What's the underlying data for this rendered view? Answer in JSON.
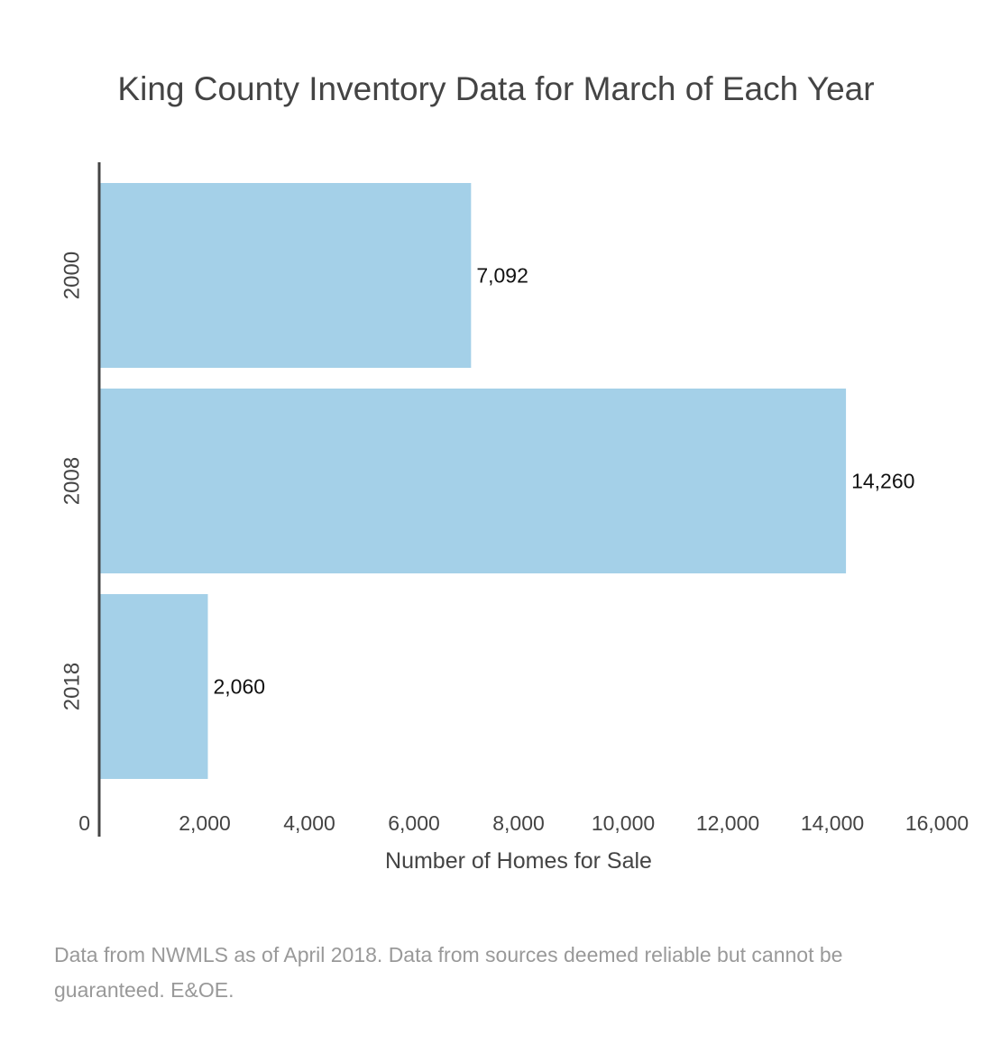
{
  "chart_data": {
    "type": "bar",
    "orientation": "horizontal",
    "title": "King County Inventory Data for March of Each Year",
    "xlabel": "Number of Homes for Sale",
    "ylabel": "",
    "categories": [
      "2000",
      "2008",
      "2018"
    ],
    "values": [
      7092,
      14260,
      2060
    ],
    "value_labels": [
      "7,092",
      "14,260",
      "2,060"
    ],
    "xlim": [
      0,
      16000
    ],
    "x_ticks": [
      0,
      2000,
      4000,
      6000,
      8000,
      10000,
      12000,
      14000,
      16000
    ],
    "x_tick_labels": [
      "0",
      "2,000",
      "4,000",
      "6,000",
      "8,000",
      "10,000",
      "12,000",
      "14,000",
      "16,000"
    ],
    "grid": false,
    "legend": "none",
    "bar_color": "#a4d0e8",
    "axis_color": "#444444"
  },
  "footnote": "Data from NWMLS as of April 2018. Data from sources deemed reliable but cannot be guaranteed. E&OE."
}
